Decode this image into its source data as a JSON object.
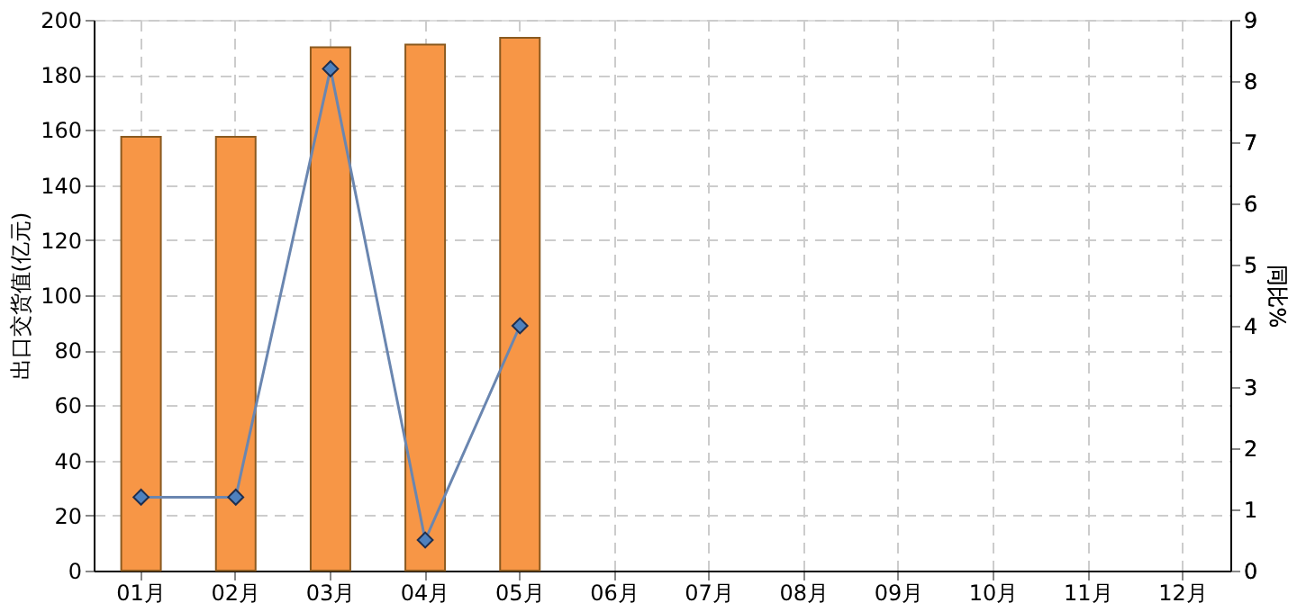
{
  "chart_data": {
    "type": "bar",
    "categories": [
      "01月",
      "02月",
      "03月",
      "04月",
      "05月",
      "06月",
      "07月",
      "08月",
      "09月",
      "10月",
      "11月",
      "12月"
    ],
    "ylabel": "出口交货值(亿元)",
    "y2label": "同比%",
    "series": [
      {
        "color": "#f79646",
        "values": [
          157.5,
          157.5,
          190,
          191,
          193.5,
          null,
          null,
          null,
          null,
          null,
          null,
          null
        ]
      },
      {
        "type": "line",
        "axis": "y2",
        "color": "#4f81bd",
        "values": [
          1.2,
          1.2,
          8.2,
          0.5,
          4.0,
          null,
          null,
          null,
          null,
          null,
          null,
          null
        ]
      }
    ],
    "ylim": [
      0,
      200
    ],
    "yticks": [
      0,
      20,
      40,
      60,
      80,
      100,
      120,
      140,
      160,
      180,
      200
    ],
    "y2lim": [
      0,
      9
    ],
    "y2ticks": [
      0,
      1,
      2,
      3,
      4,
      5,
      6,
      7,
      8,
      9
    ],
    "grid": true,
    "marker": "diamond",
    "line_style": "solid"
  }
}
